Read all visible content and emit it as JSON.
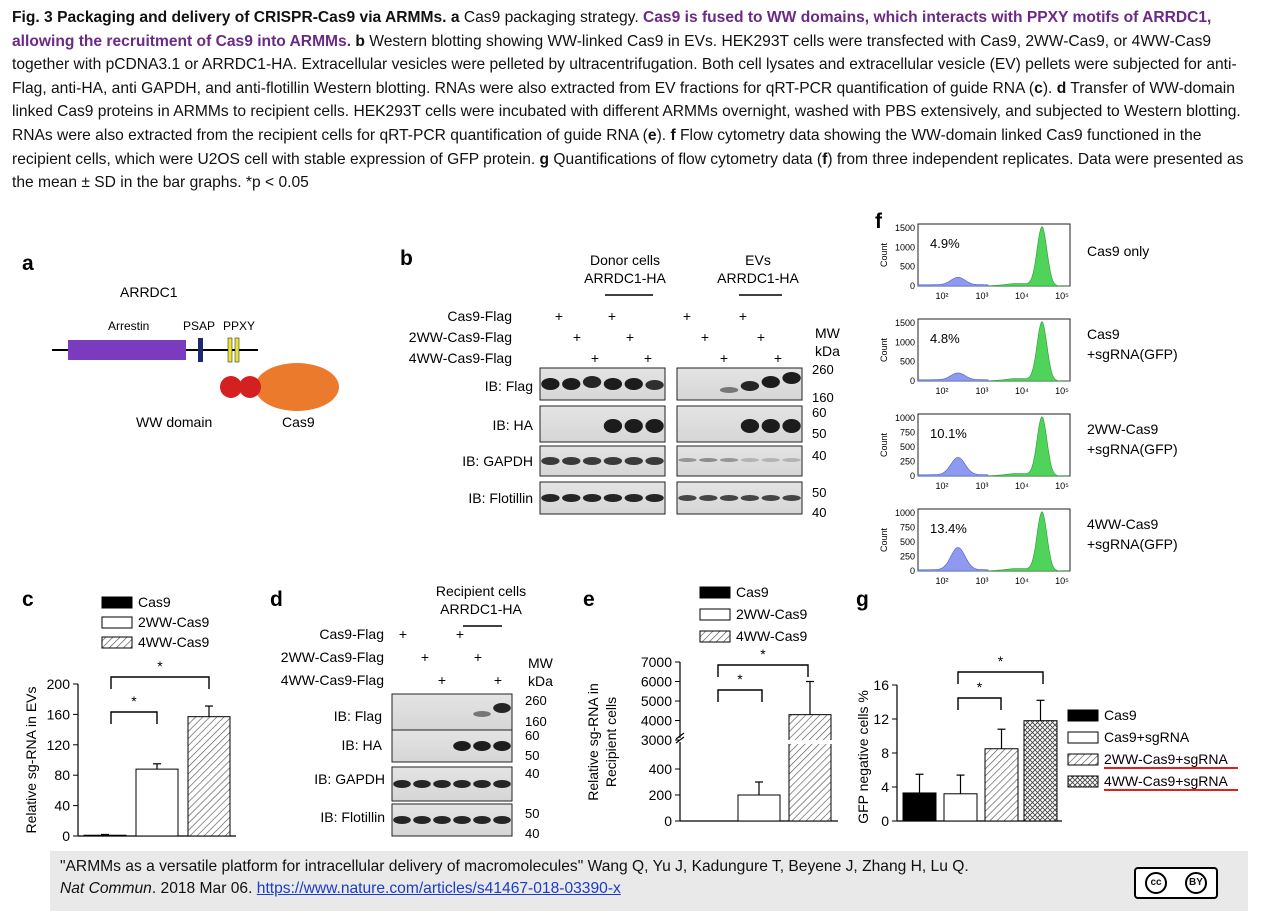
{
  "caption": {
    "fig": "Fig. 3",
    "title": "Packaging and delivery of CRISPR-Cas9 via ARMMs.",
    "a_label": "a",
    "a_text": "Cas9 packaging strategy.",
    "highlight": "Cas9 is fused to WW domains, which interacts with PPXY motifs of ARRDC1, allowing the recruitment of Cas9 into ARMMs.",
    "b_label": "b",
    "b_text": "Western blotting showing WW-linked Cas9 in EVs. HEK293T cells were transfected with Cas9, 2WW-Cas9, or 4WW-Cas9 together with pCDNA3.1 or ARRDC1-HA. Extracellular vesicles were pelleted by ultracentrifugation. Both cell lysates and extracellular vesicle (EV) pellets were subjected for anti-Flag, anti-HA, anti GAPDH, and anti-flotillin Western blotting. RNAs were also extracted from EV fractions for qRT-PCR quantification of guide RNA (",
    "c_ref": "c",
    "b_tail": ").",
    "d_label": "d",
    "d_text": "Transfer of WW-domain linked Cas9 proteins in ARMMs to recipient cells. HEK293T cells were incubated with different ARMMs overnight, washed with PBS extensively, and subjected to Western blotting. RNAs were also extracted from the recipient cells for qRT-PCR quantification of guide RNA (",
    "e_ref": "e",
    "d_tail": ").",
    "f_label": "f",
    "f_text": "Flow cytometry data showing the WW-domain linked Cas9 functioned in the recipient cells, which were U2OS cell with stable expression of GFP protein.",
    "g_label": "g",
    "g_text": "Quantifications of flow cytometry data (",
    "f_ref": "f",
    "g_tail": ") from three independent replicates. Data were presented as the mean ± SD in the bar graphs. *p < 0.05"
  },
  "panel_a": {
    "label": "a",
    "title": "ARRDC1",
    "arrestin": "Arrestin",
    "psap": "PSAP",
    "ppxy": "PPXY",
    "ww": "WW domain",
    "cas9": "Cas9",
    "colors": {
      "arrestin": "#7a3bbf",
      "ww": "#d42020",
      "cas9": "#ec7a2c",
      "psap": "#1b2a6e",
      "ppxy": "#e8e23a"
    }
  },
  "panel_b": {
    "label": "b",
    "donor": "Donor cells",
    "evs": "EVs",
    "arrdc": "ARRDC1-HA",
    "rows": [
      "Cas9-Flag",
      "2WW-Cas9-Flag",
      "4WW-Cas9-Flag"
    ],
    "plus": "+",
    "mw": "MW",
    "kda": "kDa",
    "blots": [
      "IB: Flag",
      "IB: HA",
      "IB: GAPDH",
      "IB: Flotillin"
    ],
    "mw_marks": [
      "260",
      "160",
      "60",
      "50",
      "40",
      "50",
      "40"
    ]
  },
  "panel_c": {
    "label": "c",
    "legend": [
      "Cas9",
      "2WW-Cas9",
      "4WW-Cas9"
    ],
    "sig": "*",
    "chart_data": {
      "type": "bar",
      "categories": [
        "Cas9",
        "2WW-Cas9",
        "4WW-Cas9"
      ],
      "values": [
        1,
        88,
        157
      ],
      "errors": [
        1,
        7,
        14
      ],
      "ylabel": "Relative sg-RNA in EVs",
      "ylim": [
        0,
        200
      ],
      "yticks": [
        "0",
        "40",
        "80",
        "120",
        "160",
        "200"
      ]
    }
  },
  "panel_d": {
    "label": "d",
    "recipient": "Recipient cells",
    "arrdc": "ARRDC1-HA",
    "rows": [
      "Cas9-Flag",
      "2WW-Cas9-Flag",
      "4WW-Cas9-Flag"
    ],
    "plus": "+",
    "mw": "MW",
    "kda": "kDa",
    "blots": [
      "IB: Flag",
      "IB: HA",
      "IB: GAPDH",
      "IB: Flotillin"
    ],
    "mw_marks": [
      "260",
      "160",
      "60",
      "50",
      "40",
      "50",
      "40"
    ]
  },
  "panel_e": {
    "label": "e",
    "legend": [
      "Cas9",
      "2WW-Cas9",
      "4WW-Cas9"
    ],
    "sig": "*",
    "chart_data": {
      "type": "bar",
      "categories": [
        "Cas9",
        "2WW-Cas9",
        "4WW-Cas9"
      ],
      "values": [
        0,
        200,
        4300
      ],
      "errors": [
        0,
        100,
        1700
      ],
      "ylabel": "Relative sg-RNA in Recipient cells",
      "yticks_low": [
        "0",
        "200",
        "400"
      ],
      "yticks_high": [
        "3000",
        "4000",
        "5000",
        "6000",
        "7000"
      ]
    }
  },
  "panel_f": {
    "label": "f",
    "ylabel": "Count",
    "xticks": [
      "10²",
      "10³",
      "10⁴",
      "10⁵"
    ],
    "plots": [
      {
        "pct": "4.9%",
        "name": "Cas9 only",
        "name2": "",
        "yticks": [
          "0",
          "500",
          "1000",
          "1500"
        ]
      },
      {
        "pct": "4.8%",
        "name": "Cas9",
        "name2": "+sgRNA(GFP)",
        "yticks": [
          "0",
          "500",
          "1000",
          "1500"
        ]
      },
      {
        "pct": "10.1%",
        "name": "2WW-Cas9",
        "name2": "+sgRNA(GFP)",
        "yticks": [
          "0",
          "250",
          "500",
          "750",
          "1000"
        ]
      },
      {
        "pct": "13.4%",
        "name": "4WW-Cas9",
        "name2": "+sgRNA(GFP)",
        "yticks": [
          "0",
          "250",
          "500",
          "750",
          "1000"
        ]
      }
    ]
  },
  "panel_g": {
    "label": "g",
    "sig": "*",
    "legend": [
      "Cas9",
      "Cas9+sgRNA",
      "2WW-Cas9+sgRNA",
      "4WW-Cas9+sgRNA"
    ],
    "chart_data": {
      "type": "bar",
      "categories": [
        "Cas9",
        "Cas9+sgRNA",
        "2WW-Cas9+sgRNA",
        "4WW-Cas9+sgRNA"
      ],
      "values": [
        3.3,
        3.2,
        8.5,
        11.8
      ],
      "errors": [
        2.2,
        2.2,
        2.3,
        2.4
      ],
      "ylabel": "GFP negative cells %",
      "ylim": [
        0,
        16
      ],
      "yticks": [
        "0",
        "4",
        "8",
        "12",
        "16"
      ]
    }
  },
  "citation": {
    "text": "\"ARMMs as a versatile platform for intracellular delivery of macromolecules\" Wang Q, Yu J, Kadungure T, Beyene J, Zhang H, Lu Q.",
    "journal": "Nat Commun",
    "date": ". 2018 Mar 06.",
    "url": "https://www.nature.com/articles/s41467-018-03390-x",
    "cc": "cc",
    "by": "BY"
  }
}
